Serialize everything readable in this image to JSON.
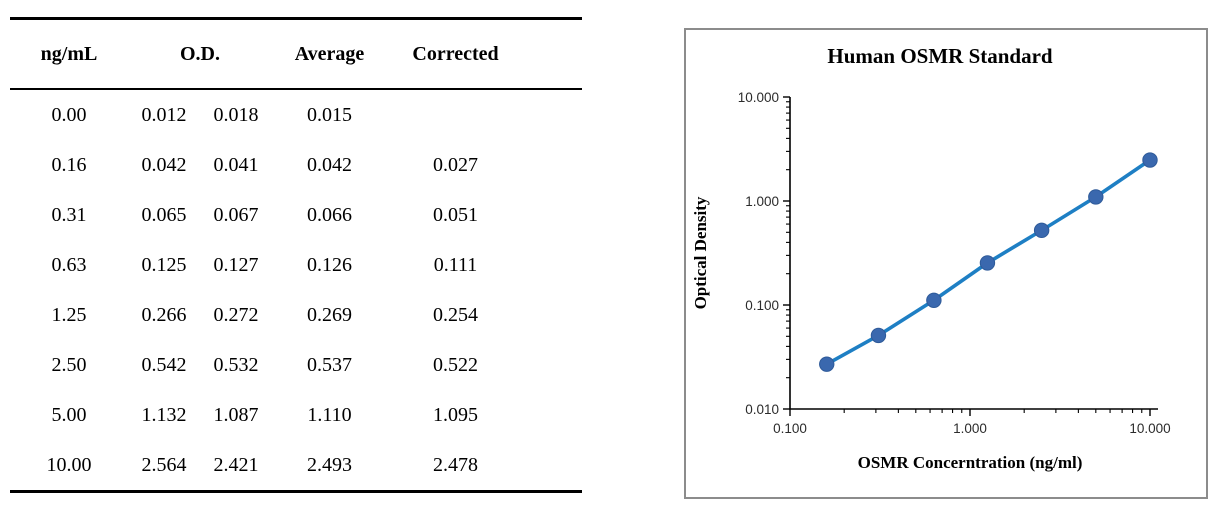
{
  "table": {
    "header": {
      "conc": "ng/mL",
      "od": "O.D.",
      "avg": "Average",
      "corrected": "Corrected"
    },
    "rows": [
      [
        "0.00",
        "0.012",
        "0.018",
        "0.015",
        ""
      ],
      [
        "0.16",
        "0.042",
        "0.041",
        "0.042",
        "0.027"
      ],
      [
        "0.31",
        "0.065",
        "0.067",
        "0.066",
        "0.051"
      ],
      [
        "0.63",
        "0.125",
        "0.127",
        "0.126",
        "0.111"
      ],
      [
        "1.25",
        "0.266",
        "0.272",
        "0.269",
        "0.254"
      ],
      [
        "2.50",
        "0.542",
        "0.532",
        "0.537",
        "0.522"
      ],
      [
        "5.00",
        "1.132",
        "1.087",
        "1.110",
        "1.095"
      ],
      [
        "10.00",
        "2.564",
        "2.421",
        "2.493",
        "2.478"
      ]
    ]
  },
  "chart_data": {
    "type": "line",
    "title": "Human OSMR Standard",
    "xlabel": "OSMR Concerntration (ng/ml)",
    "ylabel": "Optical Density",
    "x": [
      0.16,
      0.31,
      0.63,
      1.25,
      2.5,
      5.0,
      10.0
    ],
    "y": [
      0.027,
      0.051,
      0.111,
      0.254,
      0.522,
      1.095,
      2.478
    ],
    "x_scale": "log",
    "y_scale": "log",
    "xlim": [
      0.1,
      10
    ],
    "ylim": [
      0.01,
      10
    ],
    "x_tick_values": [
      0.1,
      1,
      10
    ],
    "x_tick_labels": [
      "0.100",
      "1.000",
      "10.000"
    ],
    "y_tick_values": [
      10,
      1,
      0.1,
      0.01
    ],
    "y_tick_labels": [
      "10.000",
      "1.000",
      "0.100",
      "0.010"
    ],
    "grid": false,
    "legend": "none",
    "line_color": "#1E7FC4",
    "marker_color": "#3A68AE",
    "marker_edge_color": "#2E5A99",
    "axis_color": "#000000",
    "frame_color": "#8C8C8C"
  }
}
